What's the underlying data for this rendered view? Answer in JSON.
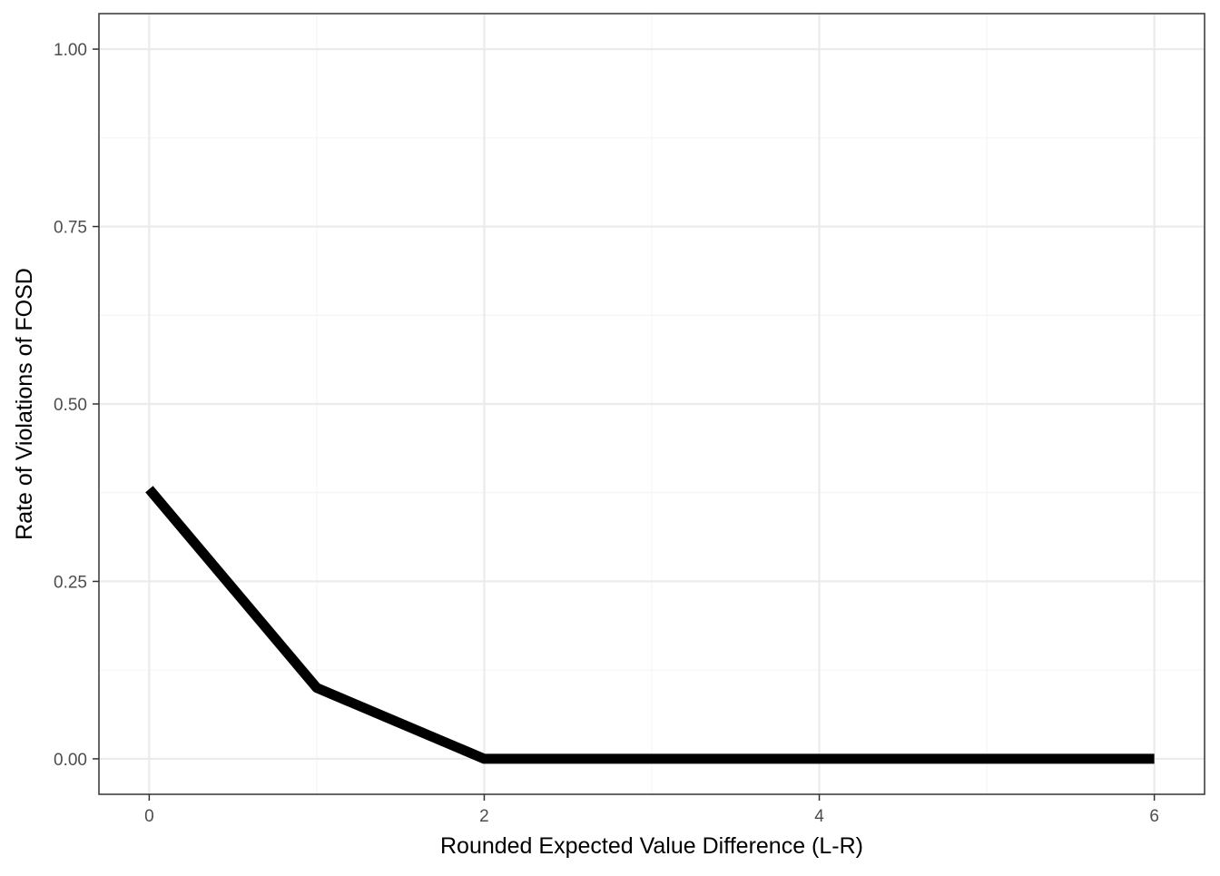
{
  "chart_data": {
    "type": "line",
    "title": "",
    "xlabel": "Rounded Expected Value Difference (L-R)",
    "ylabel": "Rate of Violations of FOSD",
    "xlim": [
      -0.3,
      6.3
    ],
    "ylim": [
      -0.05,
      1.05
    ],
    "x_ticks": [
      0,
      2,
      4,
      6
    ],
    "x_tick_labels": [
      "0",
      "2",
      "4",
      "6"
    ],
    "y_ticks": [
      0,
      0.25,
      0.5,
      0.75,
      1.0
    ],
    "y_tick_labels": [
      "0.00",
      "0.25",
      "0.50",
      "0.75",
      "1.00"
    ],
    "x_minor_ticks": [
      1,
      3,
      5
    ],
    "y_minor_ticks": [
      0.125,
      0.375,
      0.625,
      0.875
    ],
    "grid": true,
    "legend": "none",
    "series": [
      {
        "x": [
          0,
          1,
          2,
          3,
          4,
          5,
          6
        ],
        "y": [
          0.38,
          0.1,
          0.0,
          0.0,
          0.0,
          0.0,
          0.0
        ],
        "color": "#000000"
      }
    ],
    "colors": {
      "background": "#ffffff",
      "panel_border": "#333333",
      "grid_major": "#ebebeb",
      "grid_minor": "#f5f5f5",
      "tick_label": "#4d4d4d",
      "axis_title": "#000000",
      "line": "#000000"
    }
  }
}
